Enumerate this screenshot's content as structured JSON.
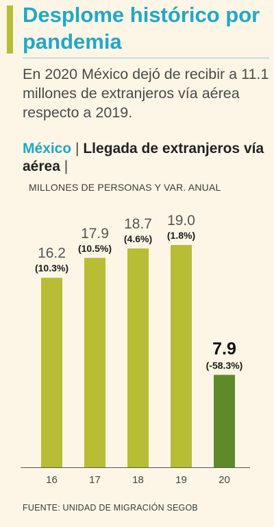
{
  "header": {
    "headline": "Desplome histórico por pandemia",
    "deck": "En 2020 México dejó de recibir a 11.1 millones de extranjeros vía aérea respecto a 2019."
  },
  "chart_title": {
    "country": "México",
    "separator": "|",
    "main": "Llegada de extranjeros vía aérea",
    "trailing": "|"
  },
  "source": "FUENTE: UNIDAD DE MIGRACIÓN SEGOB",
  "colors": {
    "accent": "#b7bd35",
    "headline": "#1fa8c9",
    "bar": "#b7bd35",
    "bar_highlight": "#5f8a2a",
    "background": "#fdf6e6"
  },
  "chart_data": {
    "type": "bar",
    "title": "Llegada de extranjeros vía aérea",
    "units_label": "MILLONES DE PERSONAS Y VAR. ANUAL",
    "categories": [
      "16",
      "17",
      "18",
      "19",
      "20"
    ],
    "values": [
      16.2,
      17.9,
      18.7,
      19.0,
      7.9
    ],
    "value_labels": [
      "16.2",
      "17.9",
      "18.7",
      "19.0",
      "7.9"
    ],
    "changes": [
      "(10.3%)",
      "(10.5%)",
      "(4.6%)",
      "(1.8%)",
      "(-58.3%)"
    ],
    "highlight_index": 4,
    "ylim": [
      0,
      19.0
    ],
    "grid": false,
    "legend": "none"
  }
}
